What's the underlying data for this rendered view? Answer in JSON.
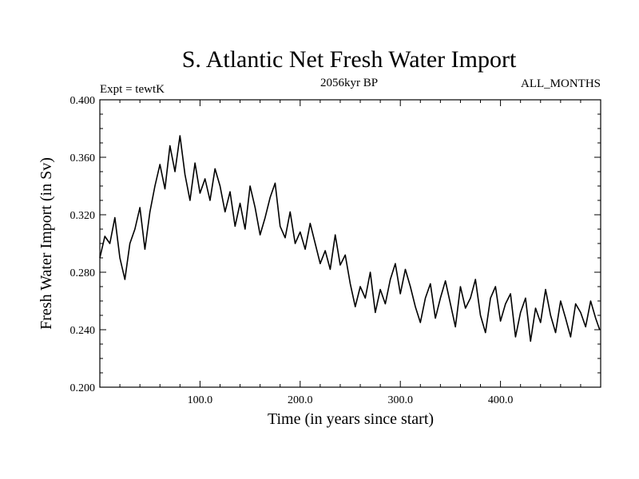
{
  "chart_data": {
    "type": "line",
    "title": "S. Atlantic Net Fresh Water Import",
    "subtitle": "2056kyr BP",
    "experiment_label": "Expt = tewtK",
    "period_label": "ALL_MONTHS",
    "xlabel": "Time (in years since start)",
    "ylabel": "Fresh Water Import (in Sv)",
    "xlim": [
      0,
      500
    ],
    "ylim": [
      0.2,
      0.4
    ],
    "x_ticks": [
      100,
      200,
      300,
      400
    ],
    "x_tick_labels": [
      "100.0",
      "200.0",
      "300.0",
      "400.0"
    ],
    "y_ticks": [
      0.2,
      0.24,
      0.28,
      0.32,
      0.36,
      0.4
    ],
    "y_tick_labels": [
      "0.200",
      "0.240",
      "0.280",
      "0.320",
      "0.360",
      "0.400"
    ],
    "grid": false,
    "series": [
      {
        "name": "Net Fresh Water Import",
        "color": "#000000",
        "x": [
          0,
          5,
          10,
          15,
          20,
          25,
          30,
          35,
          40,
          45,
          50,
          55,
          60,
          65,
          70,
          75,
          80,
          85,
          90,
          95,
          100,
          105,
          110,
          115,
          120,
          125,
          130,
          135,
          140,
          145,
          150,
          155,
          160,
          165,
          170,
          175,
          180,
          185,
          190,
          195,
          200,
          205,
          210,
          215,
          220,
          225,
          230,
          235,
          240,
          245,
          250,
          255,
          260,
          265,
          270,
          275,
          280,
          285,
          290,
          295,
          300,
          305,
          310,
          315,
          320,
          325,
          330,
          335,
          340,
          345,
          350,
          355,
          360,
          365,
          370,
          375,
          380,
          385,
          390,
          395,
          400,
          405,
          410,
          415,
          420,
          425,
          430,
          435,
          440,
          445,
          450,
          455,
          460,
          465,
          470,
          475,
          480,
          485,
          490,
          495,
          499
        ],
        "y": [
          0.29,
          0.305,
          0.3,
          0.318,
          0.29,
          0.275,
          0.3,
          0.31,
          0.325,
          0.296,
          0.322,
          0.34,
          0.355,
          0.338,
          0.368,
          0.35,
          0.375,
          0.348,
          0.33,
          0.356,
          0.335,
          0.345,
          0.33,
          0.352,
          0.34,
          0.322,
          0.336,
          0.312,
          0.328,
          0.31,
          0.34,
          0.325,
          0.306,
          0.318,
          0.332,
          0.342,
          0.312,
          0.304,
          0.322,
          0.3,
          0.308,
          0.296,
          0.314,
          0.3,
          0.286,
          0.295,
          0.282,
          0.306,
          0.285,
          0.292,
          0.272,
          0.256,
          0.27,
          0.262,
          0.28,
          0.252,
          0.268,
          0.258,
          0.275,
          0.286,
          0.265,
          0.282,
          0.27,
          0.256,
          0.245,
          0.262,
          0.272,
          0.248,
          0.262,
          0.274,
          0.258,
          0.242,
          0.27,
          0.255,
          0.262,
          0.275,
          0.25,
          0.238,
          0.262,
          0.27,
          0.246,
          0.258,
          0.265,
          0.235,
          0.252,
          0.262,
          0.232,
          0.255,
          0.245,
          0.268,
          0.25,
          0.238,
          0.26,
          0.248,
          0.235,
          0.258,
          0.252,
          0.242,
          0.26,
          0.248,
          0.24
        ]
      }
    ]
  }
}
